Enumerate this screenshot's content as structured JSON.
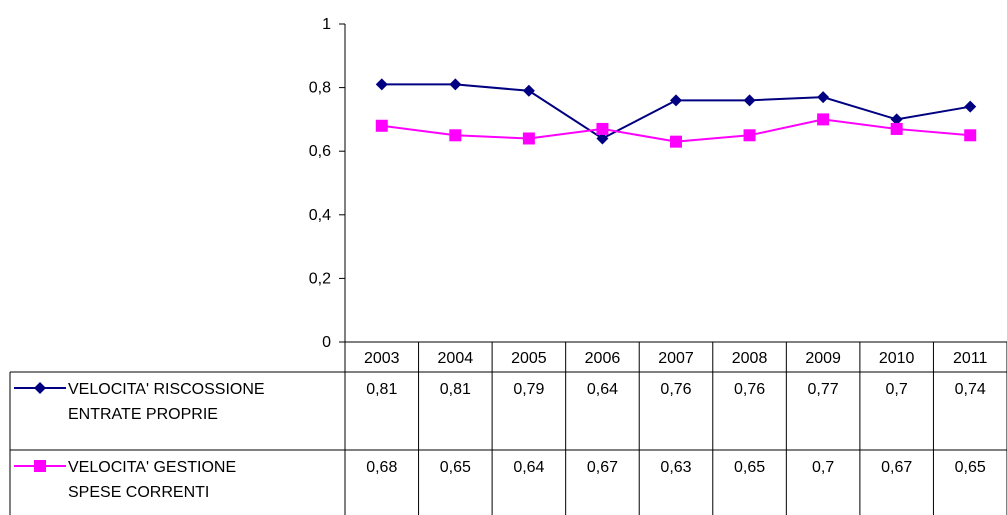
{
  "chart_data": {
    "type": "line",
    "categories": [
      "2003",
      "2004",
      "2005",
      "2006",
      "2007",
      "2008",
      "2009",
      "2010",
      "2011"
    ],
    "ylim": [
      0,
      1
    ],
    "yticks": [
      "0",
      "0,2",
      "0,4",
      "0,6",
      "0,8",
      "1"
    ],
    "ytick_values": [
      0,
      0.2,
      0.4,
      0.6,
      0.8,
      1
    ],
    "grid": false,
    "legend": "data-table",
    "series": [
      {
        "name_lines": [
          "VELOCITA' RISCOSSIONE",
          "ENTRATE PROPRIE"
        ],
        "values": [
          0.81,
          0.81,
          0.79,
          0.64,
          0.76,
          0.76,
          0.77,
          0.7,
          0.74
        ],
        "labels": [
          "0,81",
          "0,81",
          "0,79",
          "0,64",
          "0,76",
          "0,76",
          "0,77",
          "0,7",
          "0,74"
        ],
        "color": "#000080",
        "marker": "diamond"
      },
      {
        "name_lines": [
          "VELOCITA' GESTIONE",
          "SPESE CORRENTI"
        ],
        "values": [
          0.68,
          0.65,
          0.64,
          0.67,
          0.63,
          0.65,
          0.7,
          0.67,
          0.65
        ],
        "labels": [
          "0,68",
          "0,65",
          "0,64",
          "0,67",
          "0,63",
          "0,65",
          "0,7",
          "0,67",
          "0,65"
        ],
        "color": "#ff00ff",
        "marker": "square"
      }
    ]
  }
}
